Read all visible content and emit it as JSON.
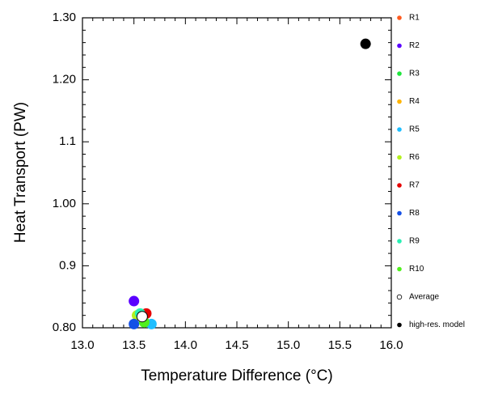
{
  "chart_data": {
    "type": "scatter",
    "xlabel": "Temperature Difference (°C)",
    "ylabel": "Heat Transport (PW)",
    "xlim": [
      13.0,
      16.0
    ],
    "ylim": [
      0.8,
      1.3
    ],
    "xticks": [
      {
        "value": 13,
        "label": "13.0"
      },
      {
        "value": 13.5,
        "label": "13.5"
      },
      {
        "value": 14,
        "label": "14.0"
      },
      {
        "value": 14.5,
        "label": "14.5"
      },
      {
        "value": 15,
        "label": "15.0"
      },
      {
        "value": 15.5,
        "label": "15.5"
      },
      {
        "value": 16,
        "label": "16.0"
      }
    ],
    "yticks": [
      {
        "value": 0.8,
        "label": "0.80"
      },
      0.9,
      {
        "value": 1,
        "label": "1.00"
      },
      1.1,
      {
        "value": 1.2,
        "label": "1.20"
      },
      {
        "value": 1.3,
        "label": "1.30"
      }
    ],
    "series": [
      {
        "name": "R1",
        "color": "#ff5a1e",
        "x": [
          13.57
        ],
        "y": [
          0.822
        ]
      },
      {
        "name": "R2",
        "color": "#5a00ff",
        "x": [
          13.5
        ],
        "y": [
          0.843
        ]
      },
      {
        "name": "R3",
        "color": "#1ee63c",
        "x": [
          13.6
        ],
        "y": [
          0.809
        ]
      },
      {
        "name": "R4",
        "color": "#ffb400",
        "x": [
          13.55
        ],
        "y": [
          0.82
        ]
      },
      {
        "name": "R5",
        "color": "#1ebeff",
        "x": [
          13.67
        ],
        "y": [
          0.806
        ]
      },
      {
        "name": "R6",
        "color": "#b4f01e",
        "x": [
          13.53
        ],
        "y": [
          0.82
        ]
      },
      {
        "name": "R7",
        "color": "#e60000",
        "x": [
          13.62
        ],
        "y": [
          0.823
        ]
      },
      {
        "name": "R8",
        "color": "#1450e6",
        "x": [
          13.5
        ],
        "y": [
          0.806
        ]
      },
      {
        "name": "R9",
        "color": "#28f0b4",
        "x": [
          13.56
        ],
        "y": [
          0.823
        ]
      },
      {
        "name": "R10",
        "color": "#50f01e",
        "x": [
          13.6
        ],
        "y": [
          0.809
        ]
      },
      {
        "name": "Average",
        "color": "#000000",
        "open": true,
        "x": [
          13.58
        ],
        "y": [
          0.818
        ]
      },
      {
        "name": "high-res. model",
        "color": "#000000",
        "x": [
          15.75
        ],
        "y": [
          1.258
        ]
      }
    ]
  }
}
